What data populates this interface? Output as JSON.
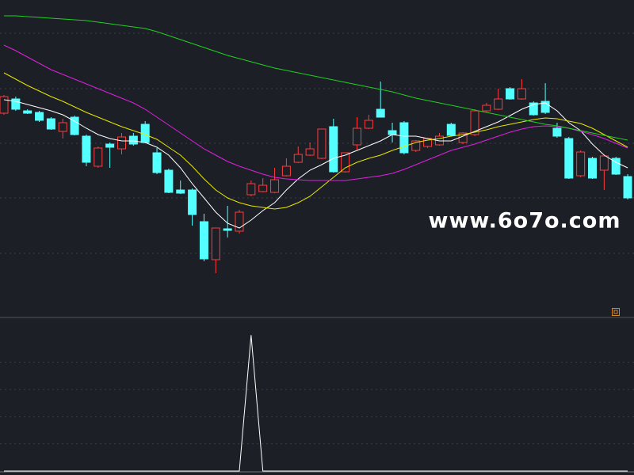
{
  "chart_data": [
    {
      "type": "candlestick",
      "annotation": "www.6o7o.com",
      "up_color": "#ff3b3b",
      "down_color": "#54ffff",
      "ylim": [
        0,
        400
      ],
      "yticks": [
        80,
        150,
        219,
        288,
        358
      ],
      "grid": true,
      "candles": {
        "open": [
          257,
          275,
          260,
          258,
          250,
          234,
          252,
          228,
          190,
          218,
          212,
          228,
          243,
          207,
          185,
          160,
          160,
          120,
          72,
          111,
          108,
          154,
          158,
          157,
          178,
          195,
          204,
          200,
          240,
          183,
          217,
          238,
          262,
          235,
          245,
          210,
          215,
          217,
          243,
          220,
          230,
          260,
          262,
          288,
          275,
          270,
          272,
          238,
          225,
          178,
          200,
          185,
          200,
          177
        ],
        "high": [
          280,
          278,
          262,
          260,
          252,
          250,
          254,
          230,
          215,
          220,
          232,
          232,
          247,
          213,
          187,
          172,
          162,
          130,
          112,
          140,
          135,
          172,
          175,
          188,
          200,
          215,
          220,
          237,
          250,
          207,
          252,
          255,
          297,
          245,
          247,
          223,
          226,
          232,
          245,
          233,
          262,
          270,
          288,
          290,
          300,
          272,
          295,
          245,
          227,
          210,
          202,
          205,
          202,
          180
        ],
        "low": [
          255,
          260,
          256,
          246,
          236,
          225,
          229,
          190,
          188,
          188,
          205,
          216,
          219,
          180,
          156,
          155,
          115,
          70,
          55,
          100,
          105,
          152,
          157,
          156,
          177,
          194,
          203,
          199,
          182,
          182,
          210,
          237,
          252,
          220,
          205,
          208,
          213,
          216,
          228,
          218,
          228,
          258,
          261,
          274,
          274,
          254,
          256,
          226,
          174,
          176,
          174,
          160,
          179,
          148
        ],
        "close": [
          278,
          262,
          257,
          248,
          237,
          245,
          230,
          195,
          213,
          214,
          227,
          218,
          220,
          182,
          157,
          156,
          129,
          73,
          112,
          109,
          132,
          168,
          166,
          173,
          190,
          205,
          212,
          237,
          183,
          207,
          238,
          248,
          252,
          230,
          207,
          222,
          225,
          228,
          229,
          232,
          260,
          267,
          275,
          275,
          288,
          255,
          258,
          228,
          175,
          208,
          175,
          203,
          180,
          150
        ]
      },
      "series": [
        {
          "color": "#ffffff",
          "values": [
            274,
            272,
            268,
            264,
            260,
            255,
            247,
            238,
            230,
            225,
            222,
            222,
            220,
            214,
            204,
            188,
            168,
            150,
            132,
            118,
            112,
            122,
            134,
            144,
            160,
            174,
            185,
            192,
            200,
            204,
            210,
            216,
            222,
            230,
            228,
            228,
            225,
            222,
            222,
            228,
            234,
            240,
            246,
            254,
            262,
            268,
            270,
            260,
            245,
            235,
            218,
            204,
            195,
            188
          ]
        },
        {
          "color": "#e8e800",
          "values": [
            308,
            300,
            292,
            285,
            278,
            272,
            265,
            258,
            252,
            246,
            240,
            235,
            230,
            224,
            214,
            204,
            190,
            174,
            160,
            150,
            144,
            140,
            138,
            136,
            138,
            144,
            152,
            164,
            176,
            188,
            195,
            200,
            204,
            210,
            215,
            220,
            223,
            225,
            228,
            230,
            233,
            236,
            240,
            243,
            246,
            249,
            251,
            250,
            247,
            244,
            238,
            230,
            222,
            214
          ]
        },
        {
          "color": "#e020e0",
          "values": [
            343,
            336,
            328,
            320,
            312,
            306,
            300,
            294,
            288,
            282,
            276,
            270,
            262,
            252,
            242,
            232,
            222,
            212,
            204,
            196,
            190,
            185,
            180,
            176,
            174,
            173,
            172,
            172,
            172,
            172,
            174,
            176,
            178,
            181,
            186,
            192,
            198,
            204,
            210,
            214,
            218,
            223,
            228,
            233,
            237,
            240,
            241,
            240,
            238,
            234,
            230,
            225,
            219,
            213
          ]
        },
        {
          "color": "#20d020",
          "values": [
            380,
            380,
            379,
            378,
            377,
            376,
            375,
            374,
            372,
            370,
            368,
            366,
            364,
            360,
            355,
            350,
            345,
            340,
            335,
            330,
            326,
            322,
            318,
            314,
            311,
            308,
            305,
            302,
            299,
            296,
            293,
            290,
            287,
            284,
            280,
            276,
            273,
            270,
            267,
            264,
            261,
            258,
            255,
            252,
            249,
            246,
            243,
            241,
            238,
            235,
            232,
            229,
            226,
            223
          ]
        }
      ]
    },
    {
      "type": "line",
      "ylim": [
        0,
        1.13
      ],
      "yticks": [
        0.2,
        0.4,
        0.6,
        0.8
      ],
      "grid": true,
      "series": [
        {
          "color": "#ffffff",
          "values": [
            0,
            0,
            0,
            0,
            0,
            0,
            0,
            0,
            0,
            0,
            0,
            0,
            0,
            0,
            0,
            0,
            0,
            0,
            0,
            0,
            0,
            1,
            0,
            0,
            0,
            0,
            0,
            0,
            0,
            0,
            0,
            0,
            0,
            0,
            0,
            0,
            0,
            0,
            0,
            0,
            0,
            0,
            0,
            0,
            0,
            0,
            0,
            0,
            0,
            0,
            0,
            0,
            0,
            0
          ]
        }
      ]
    }
  ]
}
